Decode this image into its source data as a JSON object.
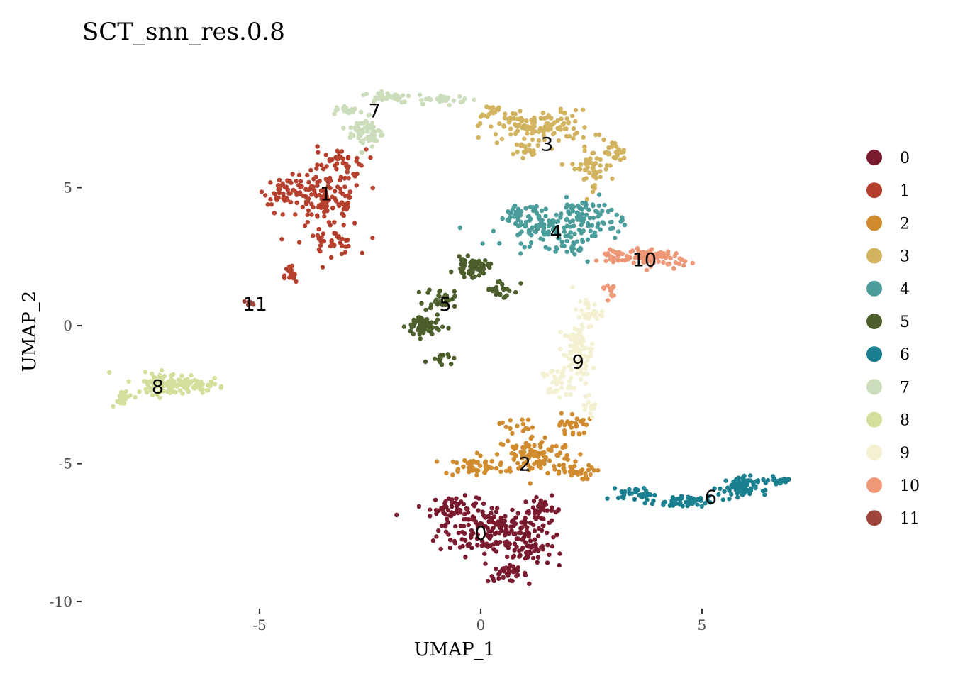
{
  "chart_data": {
    "type": "scatter",
    "title": "SCT_snn_res.0.8",
    "xlabel": "UMAP_1",
    "ylabel": "UMAP_2",
    "xlim": [
      -8.6,
      7.8
    ],
    "ylim": [
      -10.2,
      8.6
    ],
    "x_ticks": [
      -5,
      0,
      5
    ],
    "y_ticks": [
      -10,
      -5,
      0,
      5
    ],
    "x_tick_labels": [
      "-5",
      "0",
      "5"
    ],
    "y_tick_labels": [
      "-10",
      "-5",
      "0",
      "5"
    ],
    "grid": false,
    "legend_position": "right",
    "series": [
      {
        "name": "0",
        "color": "#7A1A2E",
        "label_pos": [
          0.0,
          -7.5
        ],
        "n_points": 340
      },
      {
        "name": "1",
        "color": "#B5402E",
        "label_pos": [
          -3.5,
          4.8
        ],
        "n_points": 260
      },
      {
        "name": "2",
        "color": "#D18B2F",
        "label_pos": [
          1.0,
          -5.0
        ],
        "n_points": 230
      },
      {
        "name": "3",
        "color": "#D2B35F",
        "label_pos": [
          1.5,
          6.6
        ],
        "n_points": 230
      },
      {
        "name": "4",
        "color": "#4A9D9B",
        "label_pos": [
          1.7,
          3.4
        ],
        "n_points": 230
      },
      {
        "name": "5",
        "color": "#4B5E2B",
        "label_pos": [
          -0.8,
          0.8
        ],
        "n_points": 190
      },
      {
        "name": "6",
        "color": "#1A7F8E",
        "label_pos": [
          5.2,
          -6.2
        ],
        "n_points": 170
      },
      {
        "name": "7",
        "color": "#CBDDBB",
        "label_pos": [
          -2.4,
          7.8
        ],
        "n_points": 150
      },
      {
        "name": "8",
        "color": "#D5DE9A",
        "label_pos": [
          -7.3,
          -2.2
        ],
        "n_points": 160
      },
      {
        "name": "9",
        "color": "#F4F1D3",
        "label_pos": [
          2.2,
          -1.3
        ],
        "n_points": 170
      },
      {
        "name": "10",
        "color": "#EF9878",
        "label_pos": [
          3.7,
          2.4
        ],
        "n_points": 120
      },
      {
        "name": "11",
        "color": "#A0453A",
        "label_pos": [
          -5.1,
          0.8
        ],
        "n_points": 8
      }
    ]
  }
}
